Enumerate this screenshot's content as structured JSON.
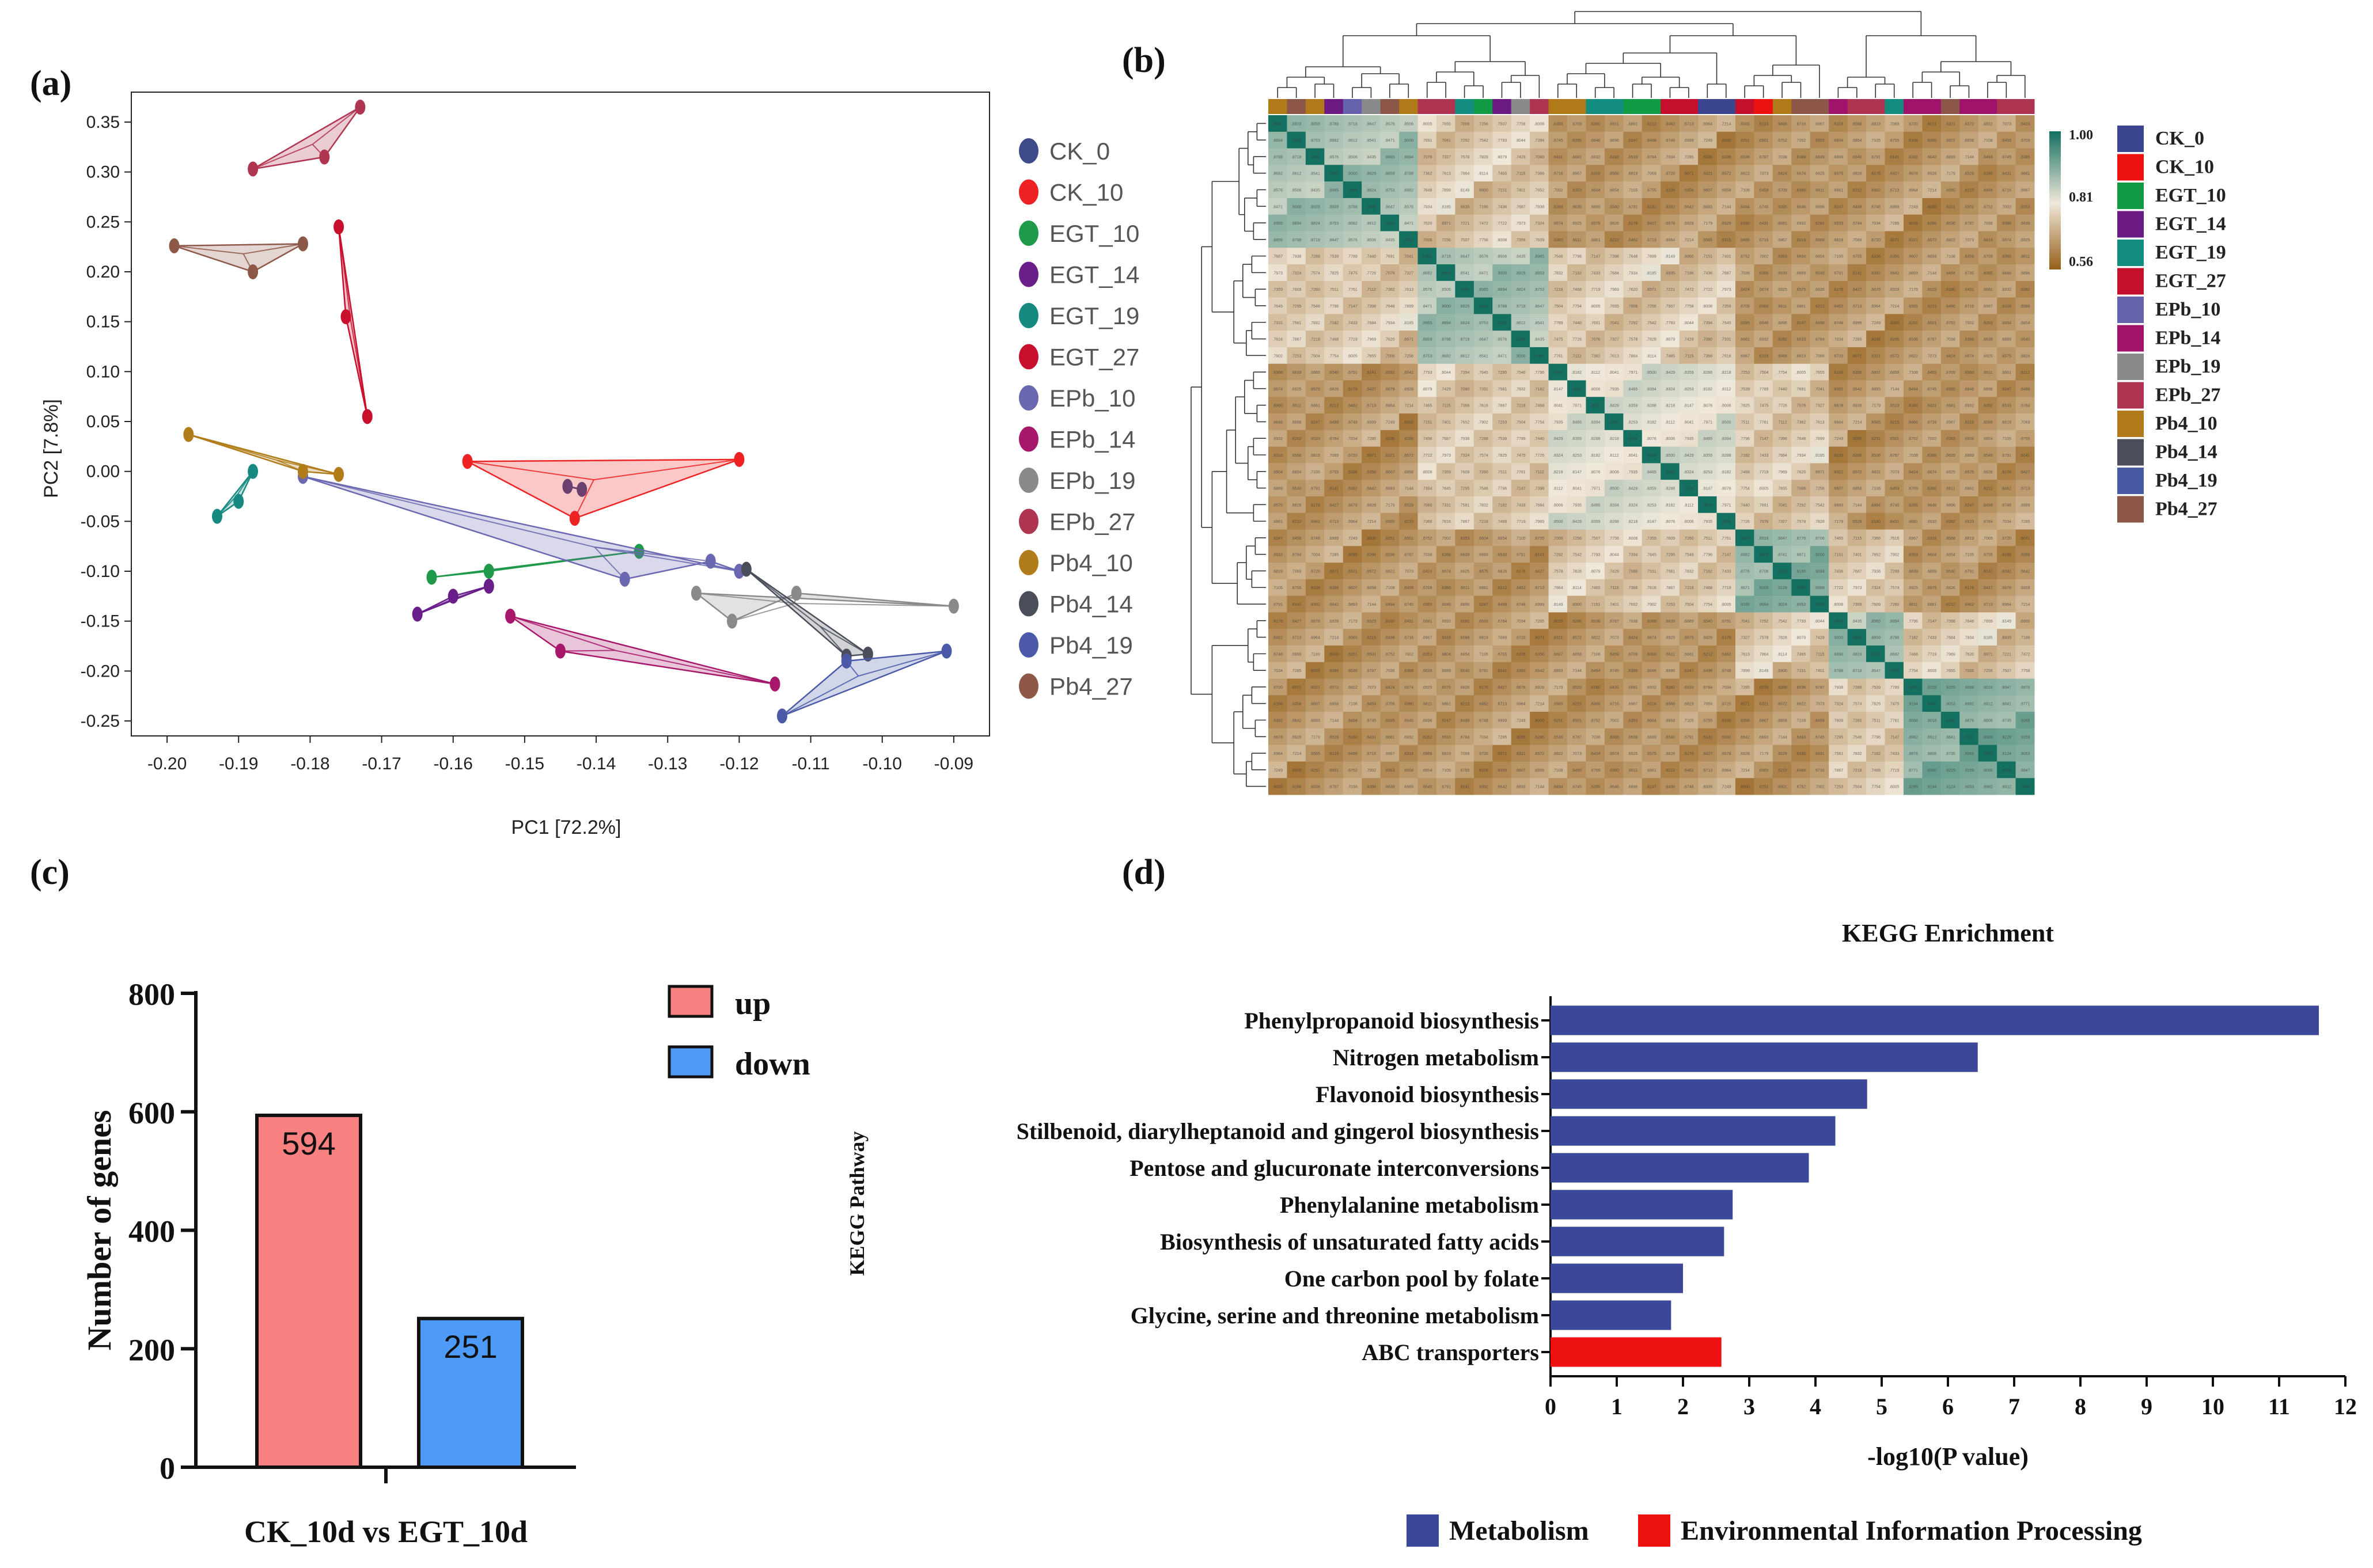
{
  "panels": {
    "a": "(a)",
    "b": "(b)",
    "c": "(c)",
    "d": "(d)"
  },
  "chart_data": [
    {
      "type": "scatter",
      "panel": "a",
      "title": "",
      "xlabel": "PC1 [72.2%]",
      "ylabel": "PC2 [7.8%]",
      "xlim": [
        -0.205,
        -0.085
      ],
      "ylim": [
        -0.265,
        0.38
      ],
      "xticks": [
        -0.2,
        -0.19,
        -0.18,
        -0.17,
        -0.16,
        -0.15,
        -0.14,
        -0.13,
        -0.12,
        -0.11,
        -0.1,
        -0.09
      ],
      "xtick_labels": [
        "-0.20",
        "-0.19",
        "-0.18",
        "-0.17",
        "-0.16",
        "-0.15",
        "-0.14",
        "-0.13",
        "-0.12",
        "-0.11",
        "-0.10",
        "-0.09"
      ],
      "yticks": [
        0.35,
        0.3,
        0.25,
        0.2,
        0.15,
        0.1,
        0.05,
        0.0,
        -0.05,
        -0.1,
        -0.15,
        -0.2,
        -0.25
      ],
      "ytick_labels": [
        "0.35",
        "0.30",
        "0.25",
        "0.20",
        "0.15",
        "0.10",
        "0.05",
        "0.00",
        "-0.05",
        "-0.10",
        "-0.15",
        "-0.20",
        "-0.25"
      ],
      "series": [
        {
          "name": "CK_0",
          "color": "#3f4a8a",
          "points": [
            [
              -0.144,
              -0.015
            ],
            [
              -0.142,
              -0.018
            ]
          ]
        },
        {
          "name": "CK_10",
          "color": "#ee2222",
          "points": [
            [
              -0.158,
              0.01
            ],
            [
              -0.12,
              0.012
            ],
            [
              -0.143,
              -0.047
            ]
          ]
        },
        {
          "name": "EGT_10",
          "color": "#1f9a4a",
          "points": [
            [
              -0.163,
              -0.106
            ],
            [
              -0.155,
              -0.1
            ],
            [
              -0.134,
              -0.08
            ]
          ]
        },
        {
          "name": "EGT_14",
          "color": "#6a1e8a",
          "points": [
            [
              -0.165,
              -0.143
            ],
            [
              -0.16,
              -0.125
            ],
            [
              -0.155,
              -0.115
            ]
          ]
        },
        {
          "name": "EGT_19",
          "color": "#168a80",
          "points": [
            [
              -0.193,
              -0.045
            ],
            [
              -0.19,
              -0.03
            ],
            [
              -0.188,
              0.0
            ]
          ]
        },
        {
          "name": "EGT_27",
          "color": "#c8102e",
          "points": [
            [
              -0.176,
              0.245
            ],
            [
              -0.175,
              0.155
            ],
            [
              -0.172,
              0.055
            ]
          ]
        },
        {
          "name": "EPb_10",
          "color": "#6a68b0",
          "points": [
            [
              -0.181,
              -0.005
            ],
            [
              -0.136,
              -0.108
            ],
            [
              -0.124,
              -0.09
            ],
            [
              -0.12,
              -0.1
            ]
          ]
        },
        {
          "name": "EPb_14",
          "color": "#a8186a",
          "points": [
            [
              -0.152,
              -0.145
            ],
            [
              -0.145,
              -0.18
            ],
            [
              -0.115,
              -0.213
            ]
          ]
        },
        {
          "name": "EPb_19",
          "color": "#8a8a8a",
          "points": [
            [
              -0.126,
              -0.122
            ],
            [
              -0.121,
              -0.15
            ],
            [
              -0.112,
              -0.122
            ],
            [
              -0.09,
              -0.135
            ]
          ]
        },
        {
          "name": "EPb_27",
          "color": "#b03550",
          "points": [
            [
              -0.188,
              0.303
            ],
            [
              -0.178,
              0.315
            ],
            [
              -0.173,
              0.365
            ]
          ]
        },
        {
          "name": "Pb4_10",
          "color": "#b07d1a",
          "points": [
            [
              -0.197,
              0.037
            ],
            [
              -0.181,
              0.0
            ],
            [
              -0.176,
              -0.003
            ]
          ]
        },
        {
          "name": "Pb4_14",
          "color": "#4a4e5a",
          "points": [
            [
              -0.119,
              -0.098
            ],
            [
              -0.105,
              -0.185
            ],
            [
              -0.102,
              -0.183
            ]
          ]
        },
        {
          "name": "Pb4_19",
          "color": "#4a5aa8",
          "points": [
            [
              -0.114,
              -0.245
            ],
            [
              -0.105,
              -0.19
            ],
            [
              -0.091,
              -0.18
            ]
          ]
        },
        {
          "name": "Pb4_27",
          "color": "#8e5848",
          "points": [
            [
              -0.199,
              0.226
            ],
            [
              -0.188,
              0.2
            ],
            [
              -0.181,
              0.228
            ]
          ]
        }
      ]
    },
    {
      "type": "heatmap",
      "panel": "b",
      "scale_max_label": "1.00",
      "scale_mid_label": "0.81",
      "scale_min_label": "0.56",
      "scale_range": [
        0.56,
        1.0
      ],
      "groups_legend": [
        {
          "name": "CK_0",
          "color": "#3c4690"
        },
        {
          "name": "CK_10",
          "color": "#ee1111"
        },
        {
          "name": "EGT_10",
          "color": "#119944"
        },
        {
          "name": "EGT_14",
          "color": "#6b1a84"
        },
        {
          "name": "EGT_19",
          "color": "#138d80"
        },
        {
          "name": "EGT_27",
          "color": "#c4102c"
        },
        {
          "name": "EPb_10",
          "color": "#6462aa"
        },
        {
          "name": "EPb_14",
          "color": "#a0136a"
        },
        {
          "name": "EPb_19",
          "color": "#8a8a8a"
        },
        {
          "name": "EPb_27",
          "color": "#ae3552"
        },
        {
          "name": "Pb4_10",
          "color": "#b07a18"
        },
        {
          "name": "Pb4_14",
          "color": "#4b4f5c"
        },
        {
          "name": "Pb4_19",
          "color": "#485aa4"
        },
        {
          "name": "Pb4_27",
          "color": "#8c5748"
        }
      ],
      "column_group_order": [
        "Pb4_10",
        "Pb4_27",
        "Pb4_10",
        "EGT_14",
        "EPb_10",
        "EPb_19",
        "Pb4_27",
        "Pb4_10",
        "EPb_27",
        "EPb_27",
        "EGT_19",
        "EGT_10",
        "EGT_14",
        "EPb_19",
        "EPb_27",
        "Pb4_10",
        "Pb4_10",
        "EGT_19",
        "EGT_19",
        "EGT_10",
        "EGT_10",
        "EGT_27",
        "EGT_27",
        "CK_0",
        "CK_0",
        "EGT_27",
        "CK_10",
        "Pb4_10",
        "Pb4_27",
        "Pb4_27",
        "EPb_14",
        "EPb_27",
        "EPb_27",
        "EGT_19",
        "EPb_14",
        "EPb_14",
        "Pb4_27",
        "EPb_14",
        "EPb_14",
        "EPb_27",
        "EPb_27"
      ],
      "blocks": [
        [
          0,
          8
        ],
        [
          8,
          15
        ],
        [
          15,
          25
        ],
        [
          25,
          30
        ],
        [
          30,
          34
        ],
        [
          34,
          41
        ]
      ],
      "block_strength": [
        0.9,
        0.9,
        0.85,
        0.92,
        0.9,
        0.93
      ]
    },
    {
      "type": "bar",
      "panel": "c",
      "ylabel": "Number of genes",
      "xlabel": "CK_10d vs EGT_10d",
      "ylim": [
        0,
        800
      ],
      "yticks": [
        0,
        200,
        400,
        600,
        800
      ],
      "ytick_labels": [
        "0",
        "200",
        "400",
        "600",
        "800"
      ],
      "categories": [
        "up",
        "down"
      ],
      "values": [
        594,
        251
      ],
      "value_labels": [
        "594",
        "251"
      ],
      "colors": [
        "#f88080",
        "#4d9bf6"
      ],
      "legend": [
        {
          "label": "up",
          "color": "#f88080"
        },
        {
          "label": "down",
          "color": "#4d9bf6"
        }
      ]
    },
    {
      "type": "bar",
      "orientation": "horizontal",
      "panel": "d",
      "title": "KEGG Enrichment",
      "xlabel": "-log10(P value)",
      "ylabel": "KEGG Pathway",
      "xlim": [
        0,
        12
      ],
      "xticks": [
        0,
        1,
        2,
        3,
        4,
        5,
        6,
        7,
        8,
        9,
        10,
        11,
        12
      ],
      "xtick_labels": [
        "0",
        "1",
        "2",
        "3",
        "4",
        "5",
        "6",
        "7",
        "8",
        "9",
        "10",
        "11",
        "12"
      ],
      "categories": [
        "Phenylpropanoid biosynthesis",
        "Nitrogen metabolism",
        "Flavonoid biosynthesis",
        "Stilbenoid, diarylheptanoid and gingerol biosynthesis",
        "Pentose and glucuronate interconversions",
        "Phenylalanine metabolism",
        "Biosynthesis of unsaturated fatty acids",
        "One carbon pool by folate",
        "Glycine, serine and threonine metabolism",
        "ABC transporters"
      ],
      "values": [
        11.6,
        6.45,
        4.78,
        4.3,
        3.9,
        2.75,
        2.62,
        2.0,
        1.82,
        2.58
      ],
      "classes": [
        "Metabolism",
        "Metabolism",
        "Metabolism",
        "Metabolism",
        "Metabolism",
        "Metabolism",
        "Metabolism",
        "Metabolism",
        "Metabolism",
        "Environmental Information Processing"
      ],
      "legend": [
        {
          "label": "Metabolism",
          "color": "#3b4899"
        },
        {
          "label": "Environmental Information Processing",
          "color": "#ee1111"
        }
      ]
    }
  ]
}
